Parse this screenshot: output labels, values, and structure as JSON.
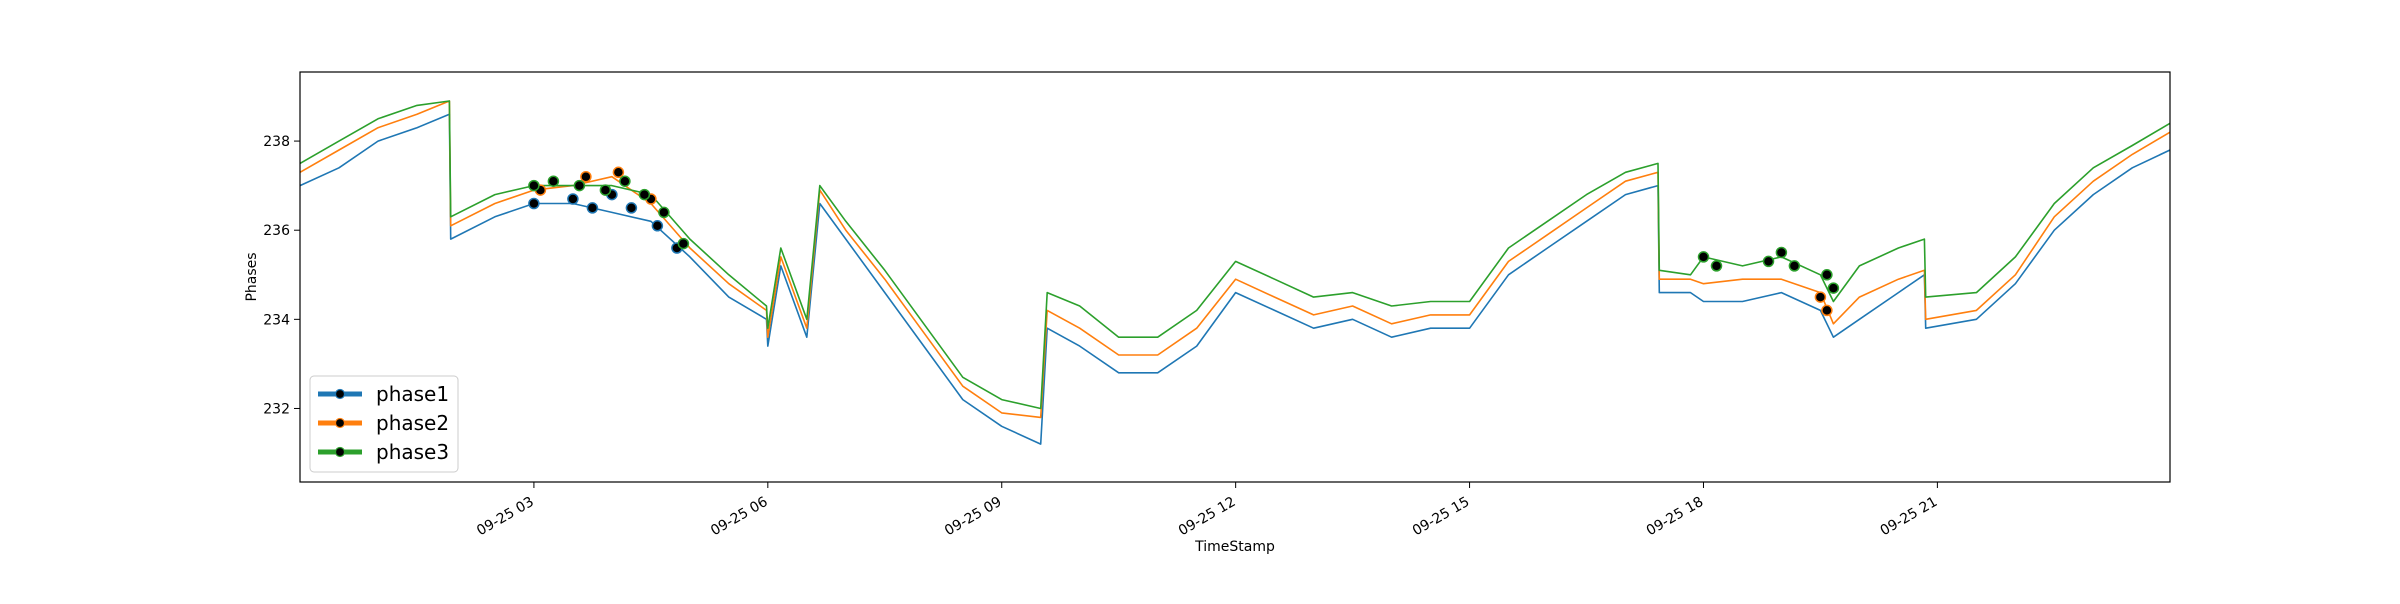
{
  "chart_data": {
    "type": "line",
    "title": "",
    "xlabel": "TimeStamp",
    "ylabel": "Phases",
    "xlim": [
      "09-25 00:00",
      "09-25 23:59"
    ],
    "ylim": [
      230.35,
      239.55
    ],
    "x_ticks": [
      "09-25 03",
      "09-25 06",
      "09-25 09",
      "09-25 12",
      "09-25 15",
      "09-25 18",
      "09-25 21"
    ],
    "y_ticks": [
      232,
      234,
      236,
      238
    ],
    "grid": false,
    "legend_position": "lower-left",
    "series": [
      {
        "name": "phase1",
        "color": "#1f77b4",
        "marker_color": "#000000",
        "x": [
          "09-25 00:00",
          "09-25 00:30",
          "09-25 01:00",
          "09-25 01:30",
          "09-25 01:55",
          "09-25 01:56",
          "09-25 02:30",
          "09-25 03:00",
          "09-25 03:30",
          "09-25 04:00",
          "09-25 04:30",
          "09-25 05:00",
          "09-25 05:30",
          "09-25 05:59",
          "09-25 06:00",
          "09-25 06:10",
          "09-25 06:30",
          "09-25 06:40",
          "09-25 07:00",
          "09-25 07:30",
          "09-25 08:00",
          "09-25 08:30",
          "09-25 09:00",
          "09-25 09:30",
          "09-25 09:35",
          "09-25 10:00",
          "09-25 10:30",
          "09-25 11:00",
          "09-25 11:30",
          "09-25 12:00",
          "09-25 12:30",
          "09-25 13:00",
          "09-25 13:30",
          "09-25 14:00",
          "09-25 14:30",
          "09-25 15:00",
          "09-25 15:30",
          "09-25 16:00",
          "09-25 16:30",
          "09-25 17:00",
          "09-25 17:25",
          "09-25 17:26",
          "09-25 17:50",
          "09-25 18:00",
          "09-25 18:30",
          "09-25 19:00",
          "09-25 19:30",
          "09-25 19:40",
          "09-25 20:00",
          "09-25 20:30",
          "09-25 20:50",
          "09-25 20:51",
          "09-25 21:30",
          "09-25 22:00",
          "09-25 22:30",
          "09-25 23:00",
          "09-25 23:30",
          "09-25 23:59"
        ],
        "values": [
          237.0,
          237.4,
          238.0,
          238.3,
          238.6,
          235.8,
          236.3,
          236.6,
          236.6,
          236.4,
          236.2,
          235.4,
          234.5,
          234.0,
          233.4,
          235.2,
          233.6,
          236.6,
          235.8,
          234.6,
          233.4,
          232.2,
          231.6,
          231.2,
          233.8,
          233.4,
          232.8,
          232.8,
          233.4,
          234.6,
          234.2,
          233.8,
          234.0,
          233.6,
          233.8,
          233.8,
          235.0,
          235.6,
          236.2,
          236.8,
          237.0,
          234.6,
          234.6,
          234.4,
          234.4,
          234.6,
          234.2,
          233.6,
          234.0,
          234.6,
          235.0,
          233.8,
          234.0,
          234.8,
          236.0,
          236.8,
          237.4,
          237.8
        ],
        "markers": [
          {
            "x": "09-25 03:00",
            "y": 236.6
          },
          {
            "x": "09-25 03:30",
            "y": 236.7
          },
          {
            "x": "09-25 03:45",
            "y": 236.5
          },
          {
            "x": "09-25 04:00",
            "y": 236.8
          },
          {
            "x": "09-25 04:15",
            "y": 236.5
          },
          {
            "x": "09-25 04:35",
            "y": 236.1
          },
          {
            "x": "09-25 04:50",
            "y": 235.6
          }
        ]
      },
      {
        "name": "phase2",
        "color": "#ff7f0e",
        "marker_color": "#000000",
        "x": [
          "09-25 00:00",
          "09-25 00:30",
          "09-25 01:00",
          "09-25 01:30",
          "09-25 01:55",
          "09-25 01:56",
          "09-25 02:30",
          "09-25 03:00",
          "09-25 03:30",
          "09-25 04:00",
          "09-25 04:30",
          "09-25 05:00",
          "09-25 05:30",
          "09-25 05:59",
          "09-25 06:00",
          "09-25 06:10",
          "09-25 06:30",
          "09-25 06:40",
          "09-25 07:00",
          "09-25 07:30",
          "09-25 08:00",
          "09-25 08:30",
          "09-25 09:00",
          "09-25 09:30",
          "09-25 09:35",
          "09-25 10:00",
          "09-25 10:30",
          "09-25 11:00",
          "09-25 11:30",
          "09-25 12:00",
          "09-25 12:30",
          "09-25 13:00",
          "09-25 13:30",
          "09-25 14:00",
          "09-25 14:30",
          "09-25 15:00",
          "09-25 15:30",
          "09-25 16:00",
          "09-25 16:30",
          "09-25 17:00",
          "09-25 17:25",
          "09-25 17:26",
          "09-25 17:50",
          "09-25 18:00",
          "09-25 18:30",
          "09-25 19:00",
          "09-25 19:30",
          "09-25 19:40",
          "09-25 20:00",
          "09-25 20:30",
          "09-25 20:50",
          "09-25 20:51",
          "09-25 21:30",
          "09-25 22:00",
          "09-25 22:30",
          "09-25 23:00",
          "09-25 23:30",
          "09-25 23:59"
        ],
        "values": [
          237.3,
          237.8,
          238.3,
          238.6,
          238.9,
          236.1,
          236.6,
          236.9,
          237.0,
          237.2,
          236.6,
          235.6,
          234.8,
          234.2,
          233.6,
          235.4,
          233.8,
          236.9,
          236.0,
          234.9,
          233.7,
          232.5,
          231.9,
          231.8,
          234.2,
          233.8,
          233.2,
          233.2,
          233.8,
          234.9,
          234.5,
          234.1,
          234.3,
          233.9,
          234.1,
          234.1,
          235.3,
          235.9,
          236.5,
          237.1,
          237.3,
          234.9,
          234.9,
          234.8,
          234.9,
          234.9,
          234.6,
          233.9,
          234.5,
          234.9,
          235.1,
          234.0,
          234.2,
          235.0,
          236.3,
          237.1,
          237.7,
          238.2
        ],
        "markers": [
          {
            "x": "09-25 03:05",
            "y": 236.9
          },
          {
            "x": "09-25 03:40",
            "y": 237.2
          },
          {
            "x": "09-25 04:05",
            "y": 237.3
          },
          {
            "x": "09-25 04:30",
            "y": 236.7
          },
          {
            "x": "09-25 19:30",
            "y": 234.5
          },
          {
            "x": "09-25 19:35",
            "y": 234.2
          }
        ]
      },
      {
        "name": "phase3",
        "color": "#2ca02c",
        "marker_color": "#000000",
        "x": [
          "09-25 00:00",
          "09-25 00:30",
          "09-25 01:00",
          "09-25 01:30",
          "09-25 01:55",
          "09-25 01:56",
          "09-25 02:30",
          "09-25 03:00",
          "09-25 03:30",
          "09-25 04:00",
          "09-25 04:30",
          "09-25 05:00",
          "09-25 05:30",
          "09-25 05:59",
          "09-25 06:00",
          "09-25 06:10",
          "09-25 06:30",
          "09-25 06:40",
          "09-25 07:00",
          "09-25 07:30",
          "09-25 08:00",
          "09-25 08:30",
          "09-25 09:00",
          "09-25 09:30",
          "09-25 09:35",
          "09-25 10:00",
          "09-25 10:30",
          "09-25 11:00",
          "09-25 11:30",
          "09-25 12:00",
          "09-25 12:30",
          "09-25 13:00",
          "09-25 13:30",
          "09-25 14:00",
          "09-25 14:30",
          "09-25 15:00",
          "09-25 15:30",
          "09-25 16:00",
          "09-25 16:30",
          "09-25 17:00",
          "09-25 17:25",
          "09-25 17:26",
          "09-25 17:50",
          "09-25 18:00",
          "09-25 18:30",
          "09-25 19:00",
          "09-25 19:30",
          "09-25 19:40",
          "09-25 20:00",
          "09-25 20:30",
          "09-25 20:50",
          "09-25 20:51",
          "09-25 21:30",
          "09-25 22:00",
          "09-25 22:30",
          "09-25 23:00",
          "09-25 23:30",
          "09-25 23:59"
        ],
        "values": [
          237.5,
          238.0,
          238.5,
          238.8,
          238.9,
          236.3,
          236.8,
          237.0,
          237.0,
          237.0,
          236.8,
          235.8,
          235.0,
          234.3,
          233.8,
          235.6,
          234.0,
          237.0,
          236.2,
          235.1,
          233.9,
          232.7,
          232.2,
          232.0,
          234.6,
          234.3,
          233.6,
          233.6,
          234.2,
          235.3,
          234.9,
          234.5,
          234.6,
          234.3,
          234.4,
          234.4,
          235.6,
          236.2,
          236.8,
          237.3,
          237.5,
          235.1,
          235.0,
          235.4,
          235.2,
          235.4,
          235.0,
          234.4,
          235.2,
          235.6,
          235.8,
          234.5,
          234.6,
          235.4,
          236.6,
          237.4,
          237.9,
          238.4
        ],
        "markers": [
          {
            "x": "09-25 03:00",
            "y": 237.0
          },
          {
            "x": "09-25 03:15",
            "y": 237.1
          },
          {
            "x": "09-25 03:35",
            "y": 237.0
          },
          {
            "x": "09-25 03:55",
            "y": 236.9
          },
          {
            "x": "09-25 04:10",
            "y": 237.1
          },
          {
            "x": "09-25 04:25",
            "y": 236.8
          },
          {
            "x": "09-25 04:40",
            "y": 236.4
          },
          {
            "x": "09-25 04:55",
            "y": 235.7
          },
          {
            "x": "09-25 18:00",
            "y": 235.4
          },
          {
            "x": "09-25 18:10",
            "y": 235.2
          },
          {
            "x": "09-25 18:50",
            "y": 235.3
          },
          {
            "x": "09-25 19:00",
            "y": 235.5
          },
          {
            "x": "09-25 19:10",
            "y": 235.2
          },
          {
            "x": "09-25 19:35",
            "y": 235.0
          },
          {
            "x": "09-25 19:40",
            "y": 234.7
          }
        ]
      }
    ]
  }
}
